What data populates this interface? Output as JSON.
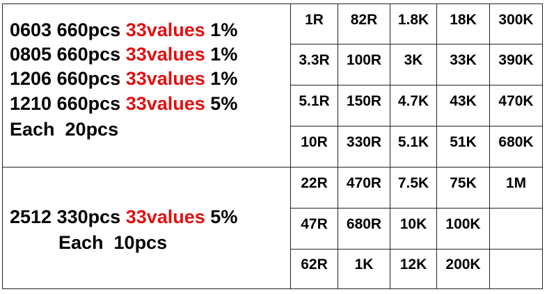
{
  "groups": [
    {
      "specs": [
        {
          "size": "0603",
          "qty": "660pcs",
          "values": "33values",
          "tolerance": "1%"
        },
        {
          "size": "0805",
          "qty": "660pcs",
          "values": "33values",
          "tolerance": "1%"
        },
        {
          "size": "1206",
          "qty": "660pcs",
          "values": "33values",
          "tolerance": "1%"
        },
        {
          "size": "1210",
          "qty": "660pcs",
          "values": "33values",
          "tolerance": "5%"
        }
      ],
      "each": "Each  20pcs"
    },
    {
      "specs": [
        {
          "size": "2512",
          "qty": "330pcs",
          "values": "33values",
          "tolerance": "5%"
        }
      ],
      "each": "Each  10pcs"
    }
  ],
  "grid": [
    [
      "1R",
      "82R",
      "1.8K",
      "18K",
      "300K"
    ],
    [
      "3.3R",
      "100R",
      "3K",
      "33K",
      "390K"
    ],
    [
      "5.1R",
      "150R",
      "4.7K",
      "43K",
      "470K"
    ],
    [
      "10R",
      "330R",
      "5.1K",
      "51K",
      "680K"
    ],
    [
      "22R",
      "470R",
      "7.5K",
      "75K",
      "1M"
    ],
    [
      "47R",
      "680R",
      "10K",
      "100K",
      null
    ],
    [
      "62R",
      "1K",
      "12K",
      "200K",
      null
    ]
  ]
}
